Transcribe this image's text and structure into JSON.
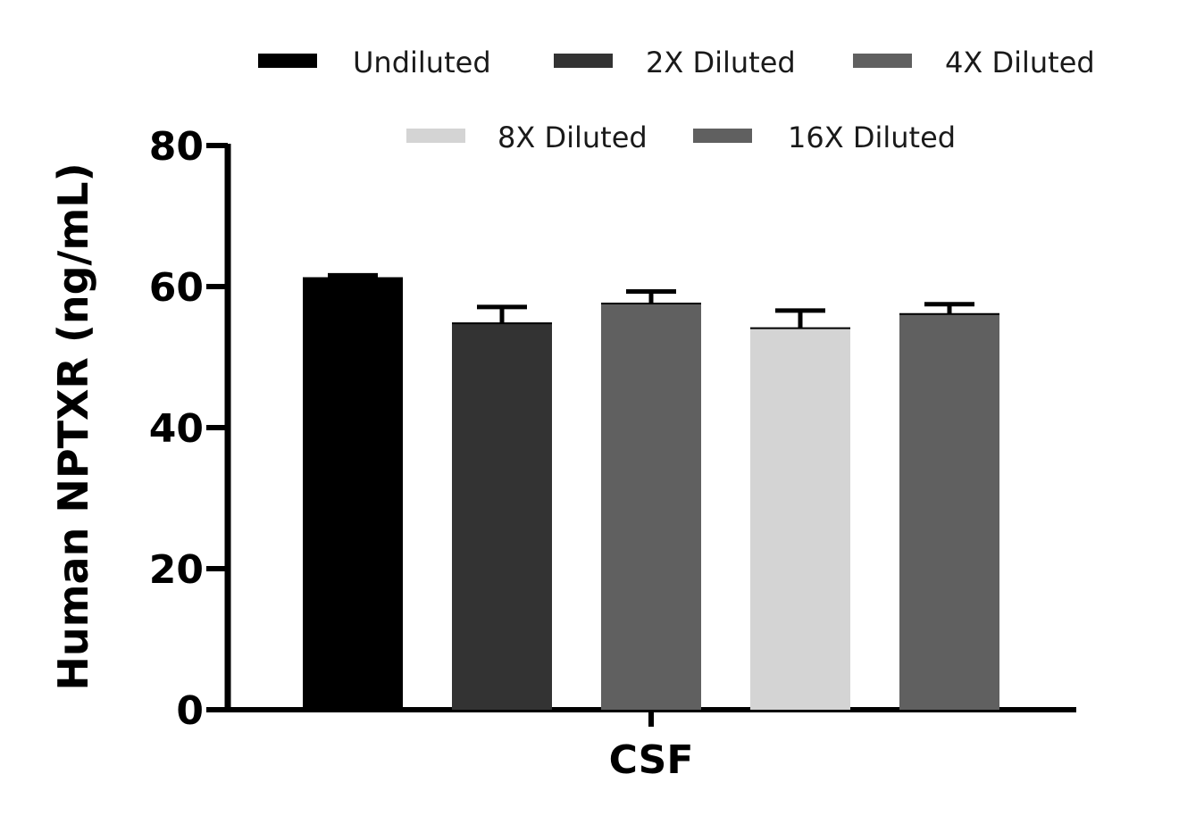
{
  "chart_data": {
    "type": "bar",
    "categories": [
      "CSF"
    ],
    "series": [
      {
        "name": "Undiluted",
        "values": [
          61.2
        ],
        "error": [
          0.4
        ],
        "color": "#000000"
      },
      {
        "name": "2X Diluted",
        "values": [
          54.8
        ],
        "error": [
          2.3
        ],
        "color": "#333333"
      },
      {
        "name": "4X Diluted",
        "values": [
          57.6
        ],
        "error": [
          1.7
        ],
        "color": "#606060"
      },
      {
        "name": "8X Diluted",
        "values": [
          54.1
        ],
        "error": [
          2.5
        ],
        "color": "#d4d4d4"
      },
      {
        "name": "16X Diluted",
        "values": [
          56.1
        ],
        "error": [
          1.4
        ],
        "color": "#606060"
      }
    ],
    "title": "",
    "xlabel": "CSF",
    "ylabel": "Human NPTXR (ng/mL)",
    "ylim": [
      0,
      80
    ],
    "yticks": [
      "0",
      "20",
      "40",
      "60",
      "80"
    ],
    "grid": false,
    "legend_position": "top"
  }
}
